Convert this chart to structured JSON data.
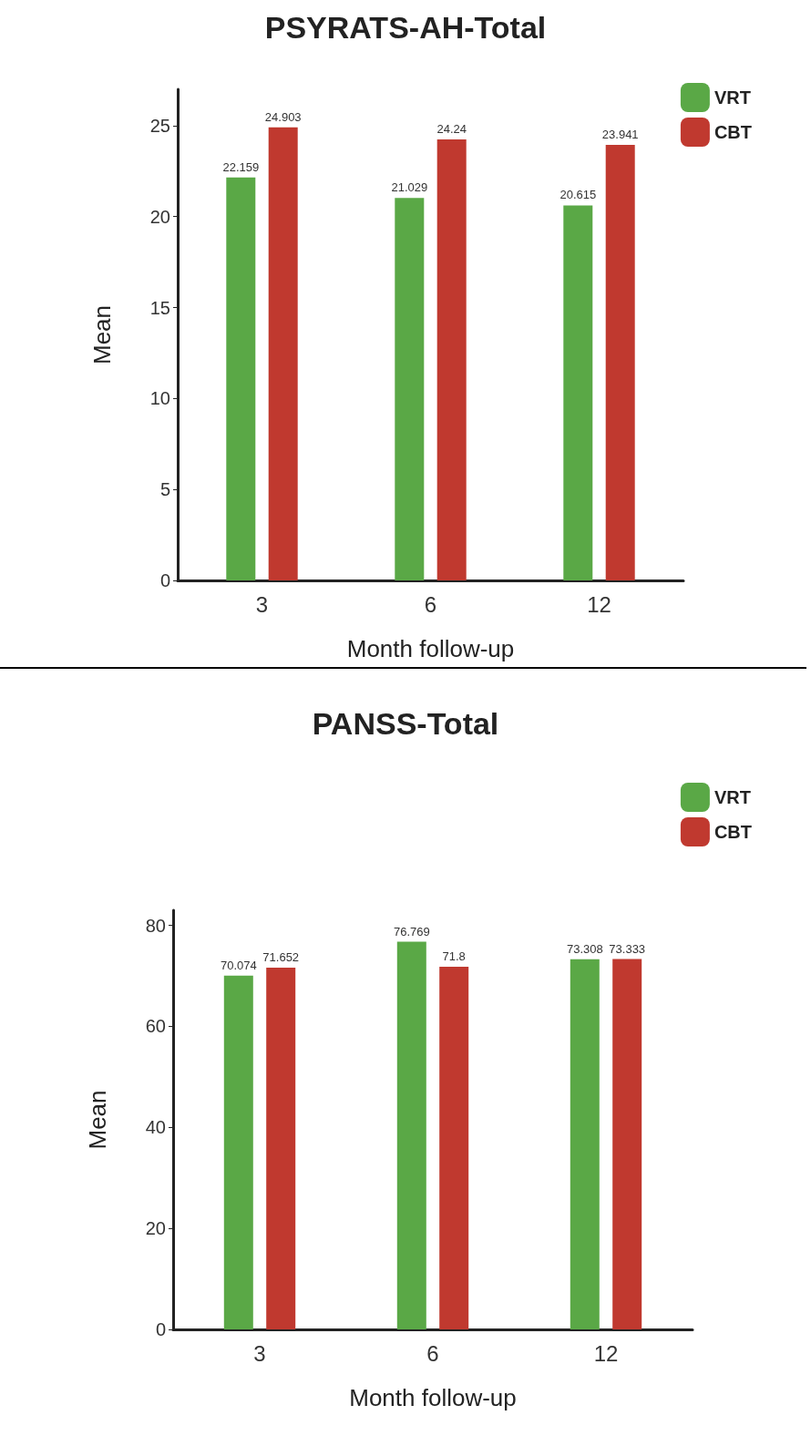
{
  "chart_data": [
    {
      "type": "bar",
      "title": "PSYRATS-AH-Total",
      "xlabel": "Month follow-up",
      "ylabel": "Mean",
      "categories": [
        "3",
        "6",
        "12"
      ],
      "series": [
        {
          "name": "VRT",
          "color": "#5aa846",
          "values": [
            22.159,
            21.029,
            20.615
          ]
        },
        {
          "name": "CBT",
          "color": "#c0392f",
          "values": [
            24.903,
            24.24,
            23.941
          ]
        }
      ],
      "ylim": [
        0,
        27
      ],
      "yticks": [
        0,
        5,
        10,
        15,
        20,
        25
      ],
      "grid": false,
      "legend": "top right",
      "data_labels": true
    },
    {
      "type": "bar",
      "title": "PANSS-Total",
      "xlabel": "Month follow-up",
      "ylabel": "Mean",
      "categories": [
        "3",
        "6",
        "12"
      ],
      "series": [
        {
          "name": "VRT",
          "color": "#5aa846",
          "values": [
            70.074,
            76.769,
            73.308
          ]
        },
        {
          "name": "CBT",
          "color": "#c0392f",
          "values": [
            71.652,
            71.8,
            73.333
          ]
        }
      ],
      "ylim": [
        0,
        83
      ],
      "yticks": [
        0,
        20,
        40,
        60,
        80
      ],
      "grid": false,
      "legend": "top right",
      "data_labels": true
    }
  ]
}
